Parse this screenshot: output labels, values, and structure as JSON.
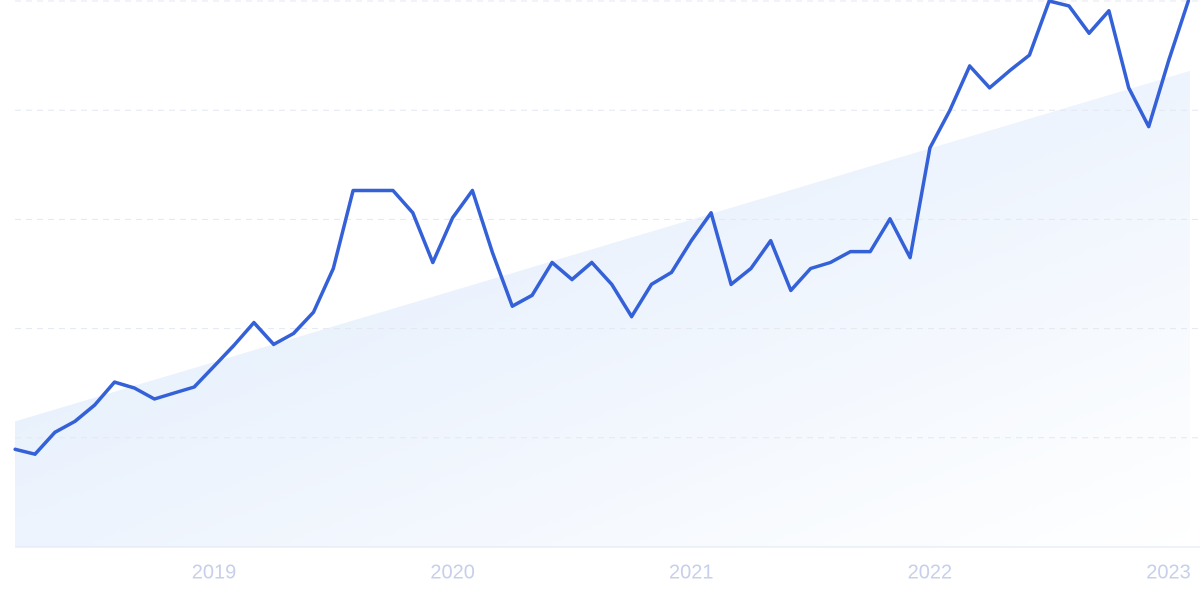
{
  "chart_data": {
    "type": "line",
    "x": [
      2018.167,
      2018.25,
      2018.333,
      2018.417,
      2018.5,
      2018.583,
      2018.667,
      2018.75,
      2018.833,
      2018.917,
      2019,
      2019.083,
      2019.167,
      2019.25,
      2019.333,
      2019.417,
      2019.5,
      2019.583,
      2019.667,
      2019.75,
      2019.833,
      2019.917,
      2020,
      2020.083,
      2020.167,
      2020.25,
      2020.333,
      2020.417,
      2020.5,
      2020.583,
      2020.667,
      2020.75,
      2020.833,
      2020.917,
      2021,
      2021.083,
      2021.167,
      2021.25,
      2021.333,
      2021.417,
      2021.5,
      2021.583,
      2021.667,
      2021.75,
      2021.833,
      2021.917,
      2022,
      2022.083,
      2022.167,
      2022.25,
      2022.333,
      2022.417,
      2022.5,
      2022.583,
      2022.667,
      2022.75,
      2022.833,
      2022.917,
      2023,
      2023.083
    ],
    "series": [
      {
        "color": "#3461d8",
        "values": [
          17.9,
          17.0,
          21.0,
          23.0,
          26.0,
          30.2,
          29.1,
          27.1,
          28.2,
          29.3,
          33.1,
          36.9,
          41.1,
          37.1,
          39.1,
          43.0,
          51.0,
          65.3,
          65.3,
          65.3,
          61.2,
          52.1,
          60.3,
          65.3,
          53.9,
          44.1,
          46.1,
          52.1,
          49.0,
          52.1,
          48.1,
          42.2,
          48.1,
          50.3,
          56.1,
          61.2,
          48.1,
          51.0,
          56.1,
          47.0,
          51.0,
          52.1,
          54.1,
          54.1,
          60.1,
          53.0,
          73.1,
          79.9,
          88.1,
          84.1,
          87.2,
          90.1,
          100,
          99.1,
          94.1,
          98.2,
          84.1,
          77.0,
          89.0,
          100
        ]
      }
    ],
    "trend": [
      23.0,
      87.2
    ],
    "xlim": [
      2018.166,
      2023.09
    ],
    "xticks": [
      2019,
      2020,
      2021,
      2022,
      2023
    ],
    "ylim": [
      0,
      100
    ],
    "yticks": [
      0,
      20,
      40,
      60,
      80,
      100
    ],
    "grid": true
  }
}
